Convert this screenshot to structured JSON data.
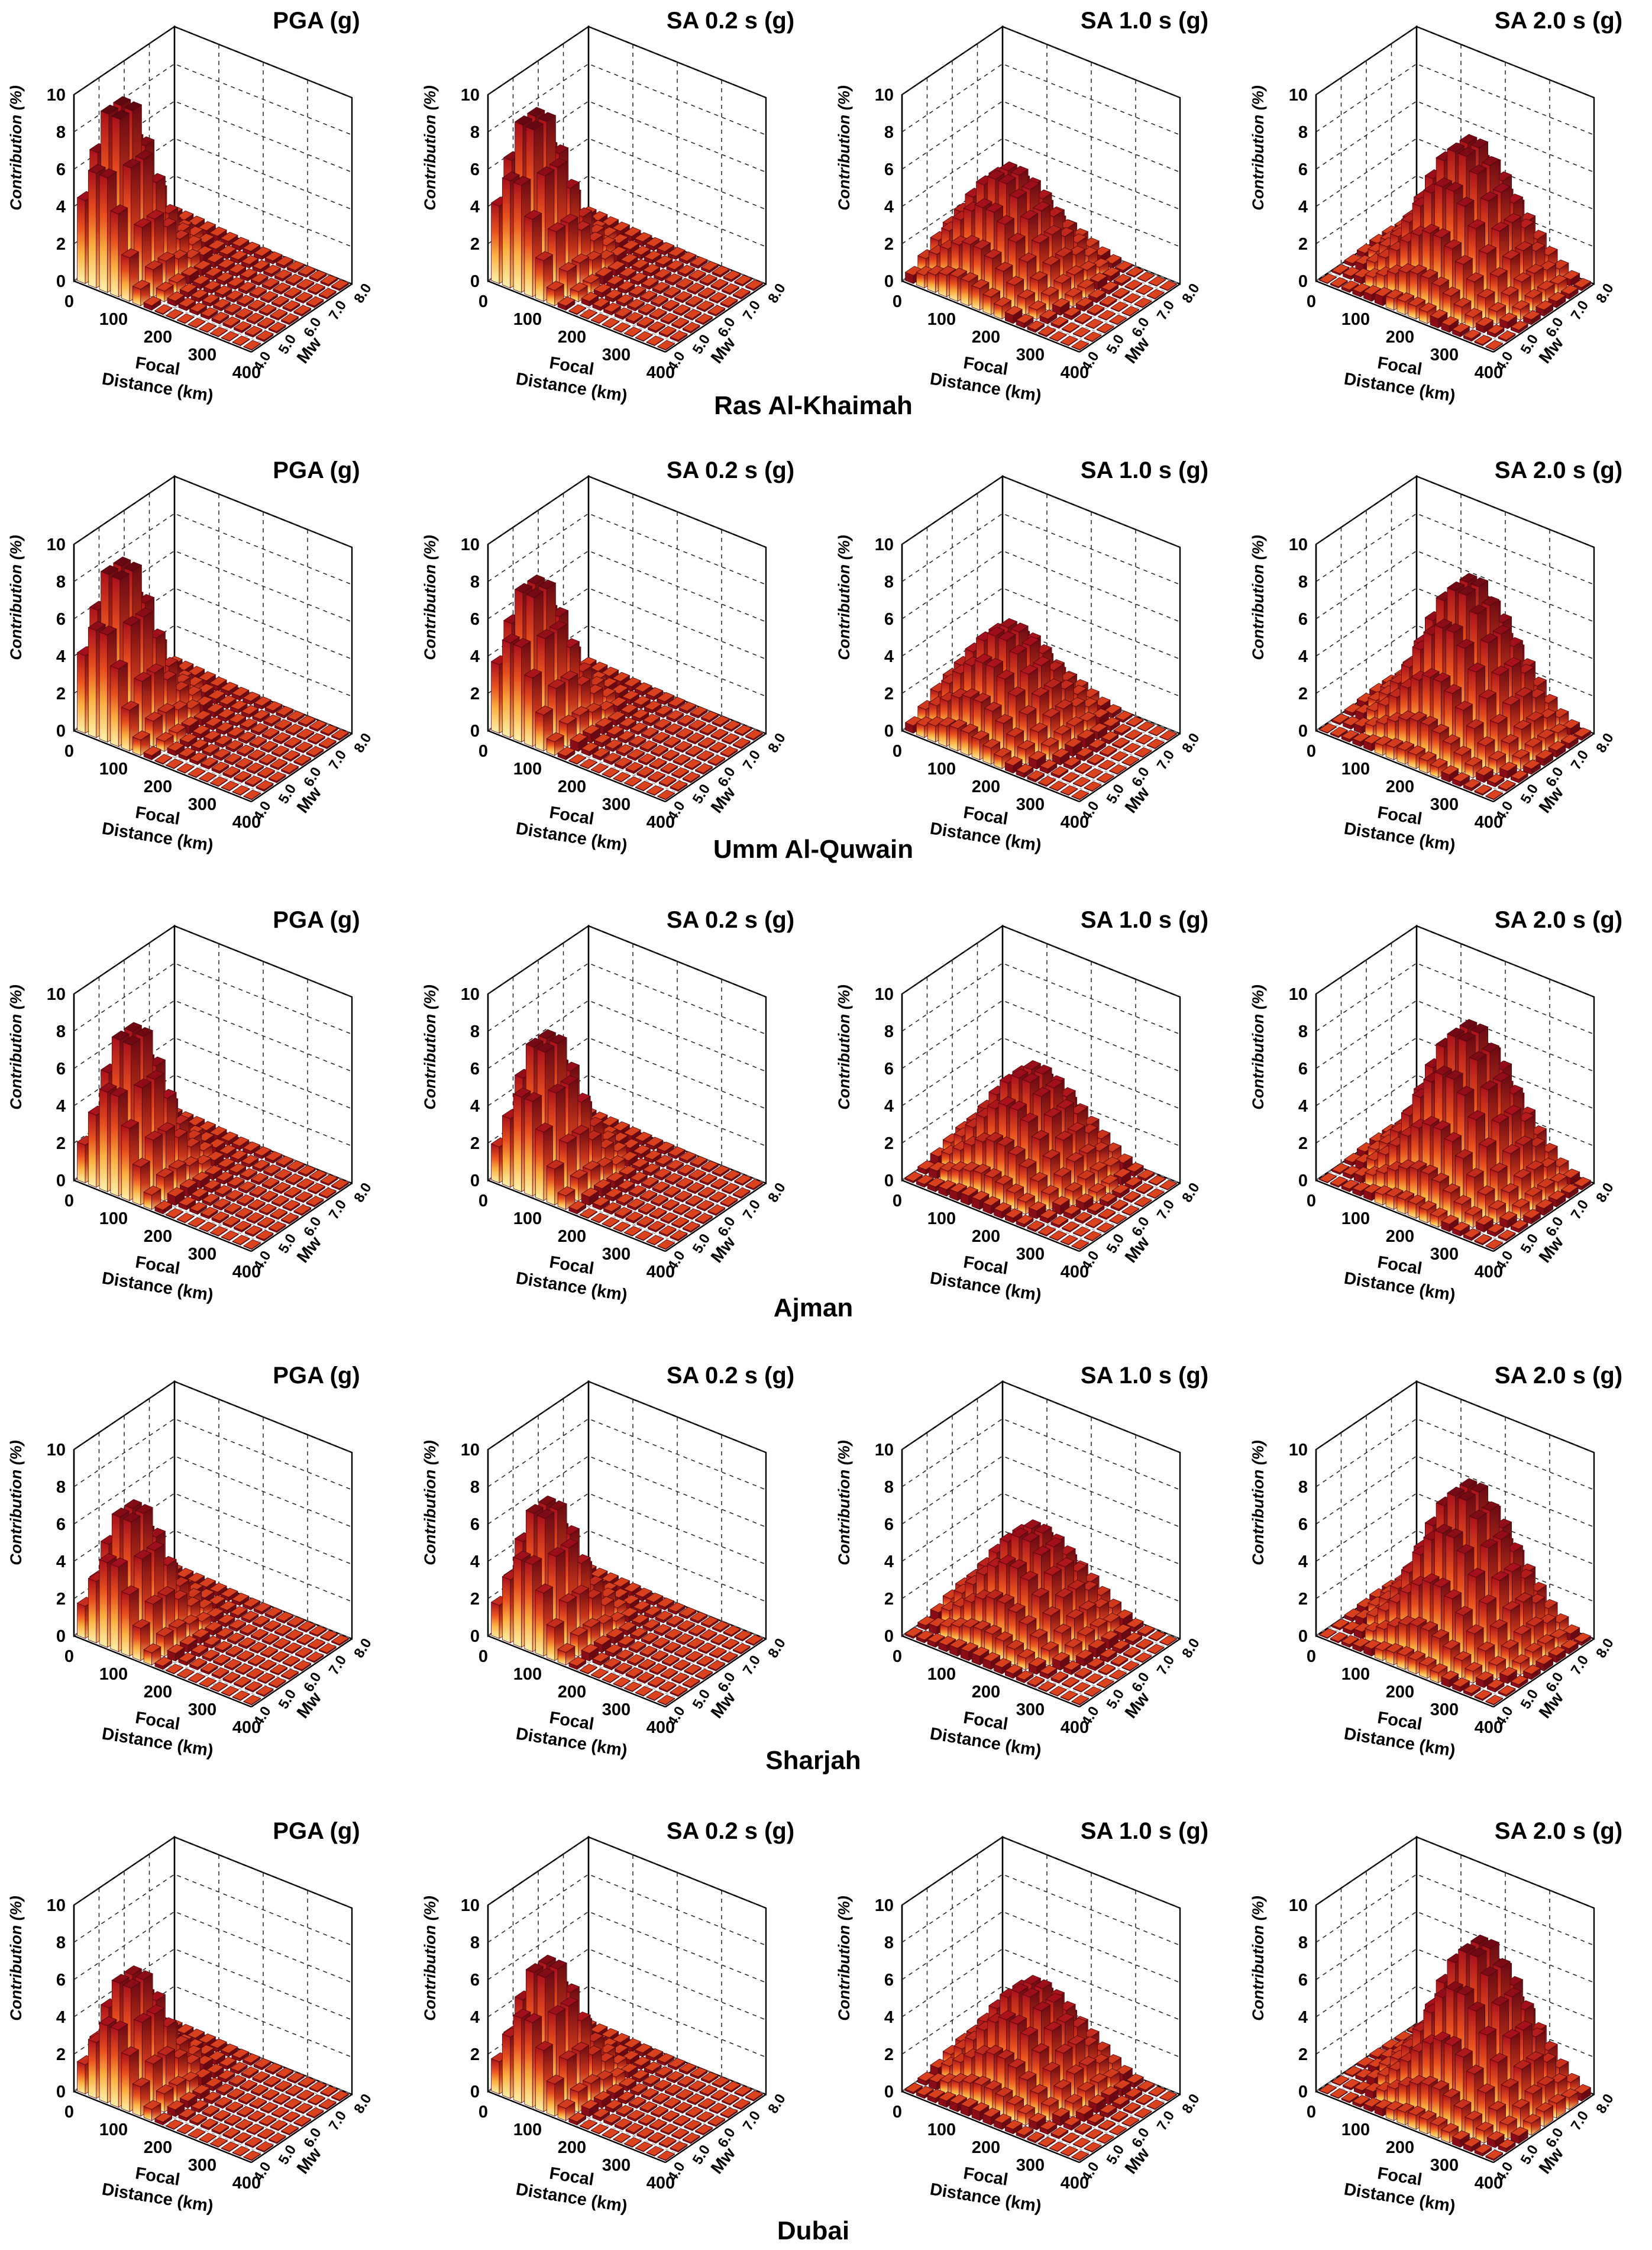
{
  "figure": {
    "city_labels": [
      "Ras Al-Khaimah",
      "Umm Al-Quwain",
      "Ajman",
      "Sharjah",
      "Dubai"
    ],
    "panel_titles": [
      "PGA (g)",
      "SA 0.2 s (g)",
      "SA 1.0 s (g)",
      "SA 2.0 s (g)"
    ],
    "axis_labels": {
      "z": "Contribution (%)",
      "x_line1": "Focal",
      "x_line2": "Distance (km)",
      "y": "Mw"
    },
    "z_ticks": [
      "0",
      "2",
      "4",
      "6",
      "8",
      "10"
    ],
    "x_ticks": [
      "0",
      "100",
      "200",
      "300",
      "400"
    ],
    "y_ticks": [
      "4.0",
      "5.0",
      "6.0",
      "7.0",
      "8.0"
    ],
    "colors": {
      "bar_low": "#fff3b0",
      "bar_mid": "#f57c20",
      "bar_high": "#b0101c",
      "bar_dark": "#5c0710"
    }
  },
  "chart_data": [
    {
      "type": "bar3d",
      "city": "Ras Al-Khaimah",
      "title": "PGA (g)",
      "zlim": [
        0,
        10
      ],
      "xlim": [
        0,
        400
      ],
      "ylim": [
        4.0,
        8.0
      ],
      "distance_bins": [
        0,
        25,
        50,
        75,
        100,
        125,
        150,
        175,
        200,
        225,
        250,
        275,
        300,
        325,
        350,
        375
      ],
      "magnitude_bins": [
        4.0,
        4.5,
        5.0,
        5.5,
        6.0,
        6.5,
        7.0,
        7.5
      ],
      "peak_contribution": 9.2,
      "mode_distance_km": 50,
      "mode_magnitude": 5.0
    },
    {
      "type": "bar3d",
      "city": "Ras Al-Khaimah",
      "title": "SA 0.2 s (g)",
      "zlim": [
        0,
        10
      ],
      "xlim": [
        0,
        400
      ],
      "ylim": [
        4.0,
        8.0
      ],
      "distance_bins": [
        0,
        25,
        50,
        75,
        100,
        125,
        150,
        175,
        200,
        225,
        250,
        275,
        300,
        325,
        350,
        375
      ],
      "magnitude_bins": [
        4.0,
        4.5,
        5.0,
        5.5,
        6.0,
        6.5,
        7.0,
        7.5
      ],
      "peak_contribution": 8.6,
      "mode_distance_km": 50,
      "mode_magnitude": 5.0
    },
    {
      "type": "bar3d",
      "city": "Ras Al-Khaimah",
      "title": "SA 1.0 s (g)",
      "zlim": [
        0,
        10
      ],
      "xlim": [
        0,
        400
      ],
      "ylim": [
        4.0,
        8.0
      ],
      "distance_bins": [
        0,
        25,
        50,
        75,
        100,
        125,
        150,
        175,
        200,
        225,
        250,
        275,
        300,
        325,
        350,
        375
      ],
      "magnitude_bins": [
        4.0,
        4.5,
        5.0,
        5.5,
        6.0,
        6.5,
        7.0,
        7.5
      ],
      "peak_contribution": 5.4,
      "mode_distance_km": 125,
      "mode_magnitude": 6.0
    },
    {
      "type": "bar3d",
      "city": "Ras Al-Khaimah",
      "title": "SA 2.0 s (g)",
      "zlim": [
        0,
        10
      ],
      "xlim": [
        0,
        400
      ],
      "ylim": [
        4.0,
        8.0
      ],
      "distance_bins": [
        0,
        25,
        50,
        75,
        100,
        125,
        150,
        175,
        200,
        225,
        250,
        275,
        300,
        325,
        350,
        375
      ],
      "magnitude_bins": [
        4.0,
        4.5,
        5.0,
        5.5,
        6.0,
        6.5,
        7.0,
        7.5
      ],
      "peak_contribution": 7.2,
      "mode_distance_km": 200,
      "mode_magnitude": 6.5
    },
    {
      "type": "bar3d",
      "city": "Umm Al-Quwain",
      "title": "PGA (g)",
      "zlim": [
        0,
        10
      ],
      "xlim": [
        0,
        400
      ],
      "ylim": [
        4.0,
        8.0
      ],
      "distance_bins": [
        0,
        25,
        50,
        75,
        100,
        125,
        150,
        175,
        200,
        225,
        250,
        275,
        300,
        325,
        350,
        375
      ],
      "magnitude_bins": [
        4.0,
        4.5,
        5.0,
        5.5,
        6.0,
        6.5,
        7.0,
        7.5
      ],
      "peak_contribution": 8.6,
      "mode_distance_km": 50,
      "mode_magnitude": 5.0
    },
    {
      "type": "bar3d",
      "city": "Umm Al-Quwain",
      "title": "SA 0.2 s (g)",
      "zlim": [
        0,
        10
      ],
      "xlim": [
        0,
        400
      ],
      "ylim": [
        4.0,
        8.0
      ],
      "distance_bins": [
        0,
        25,
        50,
        75,
        100,
        125,
        150,
        175,
        200,
        225,
        250,
        275,
        300,
        325,
        350,
        375
      ],
      "magnitude_bins": [
        4.0,
        4.5,
        5.0,
        5.5,
        6.0,
        6.5,
        7.0,
        7.5
      ],
      "peak_contribution": 7.6,
      "mode_distance_km": 50,
      "mode_magnitude": 5.0
    },
    {
      "type": "bar3d",
      "city": "Umm Al-Quwain",
      "title": "SA 1.0 s (g)",
      "zlim": [
        0,
        10
      ],
      "xlim": [
        0,
        400
      ],
      "ylim": [
        4.0,
        8.0
      ],
      "distance_bins": [
        0,
        25,
        50,
        75,
        100,
        125,
        150,
        175,
        200,
        225,
        250,
        275,
        300,
        325,
        350,
        375
      ],
      "magnitude_bins": [
        4.0,
        4.5,
        5.0,
        5.5,
        6.0,
        6.5,
        7.0,
        7.5
      ],
      "peak_contribution": 5.0,
      "mode_distance_km": 125,
      "mode_magnitude": 6.0
    },
    {
      "type": "bar3d",
      "city": "Umm Al-Quwain",
      "title": "SA 2.0 s (g)",
      "zlim": [
        0,
        10
      ],
      "xlim": [
        0,
        400
      ],
      "ylim": [
        4.0,
        8.0
      ],
      "distance_bins": [
        0,
        25,
        50,
        75,
        100,
        125,
        150,
        175,
        200,
        225,
        250,
        275,
        300,
        325,
        350,
        375
      ],
      "magnitude_bins": [
        4.0,
        4.5,
        5.0,
        5.5,
        6.0,
        6.5,
        7.0,
        7.5
      ],
      "peak_contribution": 7.8,
      "mode_distance_km": 200,
      "mode_magnitude": 6.5
    },
    {
      "type": "bar3d",
      "city": "Ajman",
      "title": "PGA (g)",
      "zlim": [
        0,
        10
      ],
      "xlim": [
        0,
        400
      ],
      "ylim": [
        4.0,
        8.0
      ],
      "distance_bins": [
        0,
        25,
        50,
        75,
        100,
        125,
        150,
        175,
        200,
        225,
        250,
        275,
        300,
        325,
        350,
        375
      ],
      "magnitude_bins": [
        4.0,
        4.5,
        5.0,
        5.5,
        6.0,
        6.5,
        7.0,
        7.5
      ],
      "peak_contribution": 8.0,
      "mode_distance_km": 75,
      "mode_magnitude": 5.0
    },
    {
      "type": "bar3d",
      "city": "Ajman",
      "title": "SA 0.2 s (g)",
      "zlim": [
        0,
        10
      ],
      "xlim": [
        0,
        400
      ],
      "ylim": [
        4.0,
        8.0
      ],
      "distance_bins": [
        0,
        25,
        50,
        75,
        100,
        125,
        150,
        175,
        200,
        225,
        250,
        275,
        300,
        325,
        350,
        375
      ],
      "magnitude_bins": [
        4.0,
        4.5,
        5.0,
        5.5,
        6.0,
        6.5,
        7.0,
        7.5
      ],
      "peak_contribution": 7.6,
      "mode_distance_km": 75,
      "mode_magnitude": 5.0
    },
    {
      "type": "bar3d",
      "city": "Ajman",
      "title": "SA 1.0 s (g)",
      "zlim": [
        0,
        10
      ],
      "xlim": [
        0,
        400
      ],
      "ylim": [
        4.0,
        8.0
      ],
      "distance_bins": [
        0,
        25,
        50,
        75,
        100,
        125,
        150,
        175,
        200,
        225,
        250,
        275,
        300,
        325,
        350,
        375
      ],
      "magnitude_bins": [
        4.0,
        4.5,
        5.0,
        5.5,
        6.0,
        6.5,
        7.0,
        7.5
      ],
      "peak_contribution": 5.2,
      "mode_distance_km": 150,
      "mode_magnitude": 6.5
    },
    {
      "type": "bar3d",
      "city": "Ajman",
      "title": "SA 2.0 s (g)",
      "zlim": [
        0,
        10
      ],
      "xlim": [
        0,
        400
      ],
      "ylim": [
        4.0,
        8.0
      ],
      "distance_bins": [
        0,
        25,
        50,
        75,
        100,
        125,
        150,
        175,
        200,
        225,
        250,
        275,
        300,
        325,
        350,
        375
      ],
      "magnitude_bins": [
        4.0,
        4.5,
        5.0,
        5.5,
        6.0,
        6.5,
        7.0,
        7.5
      ],
      "peak_contribution": 8.0,
      "mode_distance_km": 200,
      "mode_magnitude": 6.5
    },
    {
      "type": "bar3d",
      "city": "Sharjah",
      "title": "PGA (g)",
      "zlim": [
        0,
        10
      ],
      "xlim": [
        0,
        400
      ],
      "ylim": [
        4.0,
        8.0
      ],
      "distance_bins": [
        0,
        25,
        50,
        75,
        100,
        125,
        150,
        175,
        200,
        225,
        250,
        275,
        300,
        325,
        350,
        375
      ],
      "magnitude_bins": [
        4.0,
        4.5,
        5.0,
        5.5,
        6.0,
        6.5,
        7.0,
        7.5
      ],
      "peak_contribution": 6.8,
      "mode_distance_km": 75,
      "mode_magnitude": 5.0
    },
    {
      "type": "bar3d",
      "city": "Sharjah",
      "title": "SA 0.2 s (g)",
      "zlim": [
        0,
        10
      ],
      "xlim": [
        0,
        400
      ],
      "ylim": [
        4.0,
        8.0
      ],
      "distance_bins": [
        0,
        25,
        50,
        75,
        100,
        125,
        150,
        175,
        200,
        225,
        250,
        275,
        300,
        325,
        350,
        375
      ],
      "magnitude_bins": [
        4.0,
        4.5,
        5.0,
        5.5,
        6.0,
        6.5,
        7.0,
        7.5
      ],
      "peak_contribution": 7.0,
      "mode_distance_km": 75,
      "mode_magnitude": 5.0
    },
    {
      "type": "bar3d",
      "city": "Sharjah",
      "title": "SA 1.0 s (g)",
      "zlim": [
        0,
        10
      ],
      "xlim": [
        0,
        400
      ],
      "ylim": [
        4.0,
        8.0
      ],
      "distance_bins": [
        0,
        25,
        50,
        75,
        100,
        125,
        150,
        175,
        200,
        225,
        250,
        275,
        300,
        325,
        350,
        375
      ],
      "magnitude_bins": [
        4.0,
        4.5,
        5.0,
        5.5,
        6.0,
        6.5,
        7.0,
        7.5
      ],
      "peak_contribution": 5.0,
      "mode_distance_km": 150,
      "mode_magnitude": 6.5
    },
    {
      "type": "bar3d",
      "city": "Sharjah",
      "title": "SA 2.0 s (g)",
      "zlim": [
        0,
        10
      ],
      "xlim": [
        0,
        400
      ],
      "ylim": [
        4.0,
        8.0
      ],
      "distance_bins": [
        0,
        25,
        50,
        75,
        100,
        125,
        150,
        175,
        200,
        225,
        250,
        275,
        300,
        325,
        350,
        375
      ],
      "magnitude_bins": [
        4.0,
        4.5,
        5.0,
        5.5,
        6.0,
        6.5,
        7.0,
        7.5
      ],
      "peak_contribution": 7.8,
      "mode_distance_km": 200,
      "mode_magnitude": 6.5
    },
    {
      "type": "bar3d",
      "city": "Dubai",
      "title": "PGA (g)",
      "zlim": [
        0,
        10
      ],
      "xlim": [
        0,
        400
      ],
      "ylim": [
        4.0,
        8.0
      ],
      "distance_bins": [
        0,
        25,
        50,
        75,
        100,
        125,
        150,
        175,
        200,
        225,
        250,
        275,
        300,
        325,
        350,
        375
      ],
      "magnitude_bins": [
        4.0,
        4.5,
        5.0,
        5.5,
        6.0,
        6.5,
        7.0,
        7.5
      ],
      "peak_contribution": 6.2,
      "mode_distance_km": 75,
      "mode_magnitude": 5.0
    },
    {
      "type": "bar3d",
      "city": "Dubai",
      "title": "SA 0.2 s (g)",
      "zlim": [
        0,
        10
      ],
      "xlim": [
        0,
        400
      ],
      "ylim": [
        4.0,
        8.0
      ],
      "distance_bins": [
        0,
        25,
        50,
        75,
        100,
        125,
        150,
        175,
        200,
        225,
        250,
        275,
        300,
        325,
        350,
        375
      ],
      "magnitude_bins": [
        4.0,
        4.5,
        5.0,
        5.5,
        6.0,
        6.5,
        7.0,
        7.5
      ],
      "peak_contribution": 6.8,
      "mode_distance_km": 75,
      "mode_magnitude": 5.0
    },
    {
      "type": "bar3d",
      "city": "Dubai",
      "title": "SA 1.0 s (g)",
      "zlim": [
        0,
        10
      ],
      "xlim": [
        0,
        400
      ],
      "ylim": [
        4.0,
        8.0
      ],
      "distance_bins": [
        0,
        25,
        50,
        75,
        100,
        125,
        150,
        175,
        200,
        225,
        250,
        275,
        300,
        325,
        350,
        375
      ],
      "magnitude_bins": [
        4.0,
        4.5,
        5.0,
        5.5,
        6.0,
        6.5,
        7.0,
        7.5
      ],
      "peak_contribution": 5.0,
      "mode_distance_km": 150,
      "mode_magnitude": 6.5
    },
    {
      "type": "bar3d",
      "city": "Dubai",
      "title": "SA 2.0 s (g)",
      "zlim": [
        0,
        10
      ],
      "xlim": [
        0,
        400
      ],
      "ylim": [
        4.0,
        8.0
      ],
      "distance_bins": [
        0,
        25,
        50,
        75,
        100,
        125,
        150,
        175,
        200,
        225,
        250,
        275,
        300,
        325,
        350,
        375
      ],
      "magnitude_bins": [
        4.0,
        4.5,
        5.0,
        5.5,
        6.0,
        6.5,
        7.0,
        7.5
      ],
      "peak_contribution": 8.0,
      "mode_distance_km": 225,
      "mode_magnitude": 6.5
    }
  ]
}
